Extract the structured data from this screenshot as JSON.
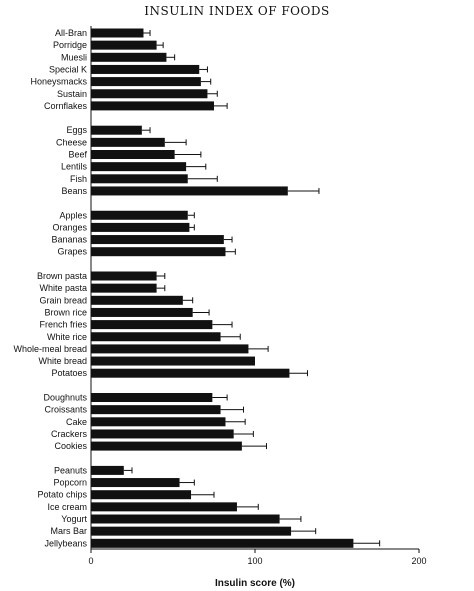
{
  "chart_data": {
    "type": "bar",
    "orientation": "horizontal",
    "title": "INSULIN INDEX OF FOODS",
    "xlabel": "Insulin score (%)",
    "ylabel": "",
    "xlim": [
      0,
      200
    ],
    "xticks": [
      0,
      100,
      200
    ],
    "grid": false,
    "groups": [
      {
        "categories": [
          "All-Bran",
          "Porridge",
          "Muesli",
          "Special K",
          "Honeysmacks",
          "Sustain",
          "Cornflakes"
        ],
        "values": [
          32,
          40,
          46,
          66,
          67,
          71,
          75
        ],
        "errors": [
          4,
          4,
          5,
          5,
          6,
          6,
          8
        ]
      },
      {
        "categories": [
          "Eggs",
          "Cheese",
          "Beef",
          "Lentils",
          "Fish",
          "Beans"
        ],
        "values": [
          31,
          45,
          51,
          58,
          59,
          120
        ],
        "errors": [
          5,
          13,
          16,
          12,
          18,
          19
        ]
      },
      {
        "categories": [
          "Apples",
          "Oranges",
          "Bananas",
          "Grapes"
        ],
        "values": [
          59,
          60,
          81,
          82
        ],
        "errors": [
          4,
          3,
          5,
          6
        ]
      },
      {
        "categories": [
          "Brown pasta",
          "White pasta",
          "Grain bread",
          "Brown rice",
          "French fries",
          "White rice",
          "Whole-meal bread",
          "White bread",
          "Potatoes"
        ],
        "values": [
          40,
          40,
          56,
          62,
          74,
          79,
          96,
          100,
          121
        ],
        "errors": [
          5,
          5,
          6,
          10,
          12,
          12,
          12,
          0,
          11
        ]
      },
      {
        "categories": [
          "Doughnuts",
          "Croissants",
          "Cake",
          "Crackers",
          "Cookies"
        ],
        "values": [
          74,
          79,
          82,
          87,
          92
        ],
        "errors": [
          9,
          14,
          12,
          12,
          15
        ]
      },
      {
        "categories": [
          "Peanuts",
          "Popcorn",
          "Potato chips",
          "Ice cream",
          "Yogurt",
          "Mars Bar",
          "Jellybeans"
        ],
        "values": [
          20,
          54,
          61,
          89,
          115,
          122,
          160
        ],
        "errors": [
          5,
          9,
          14,
          13,
          13,
          15,
          16
        ]
      }
    ]
  }
}
